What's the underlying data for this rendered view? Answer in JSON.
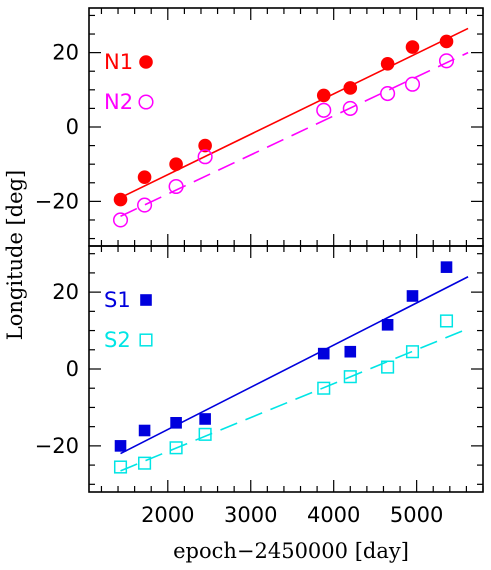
{
  "chart_data": {
    "type": "scatter",
    "xlabel": "epoch−2450000 [day]",
    "ylabel": "Longitude [deg]",
    "xlim": [
      1050,
      5800
    ],
    "x_ticks": [
      2000,
      3000,
      4000,
      5000
    ],
    "x_tick_labels": [
      "2000",
      "3000",
      "4000",
      "5000"
    ],
    "grid": false,
    "panels": [
      {
        "name": "top",
        "ylim": [
          -32,
          32
        ],
        "y_ticks": [
          -20,
          0,
          20
        ],
        "y_tick_labels": [
          "−20",
          "0",
          "20"
        ],
        "legend_placement": "top-left",
        "series": [
          {
            "name": "N1",
            "marker": "filled-circle",
            "color": "#ff0000",
            "x": [
              1430,
              1720,
              2100,
              2450,
              3880,
              4200,
              4650,
              4950,
              5360
            ],
            "y": [
              -19.5,
              -13.5,
              -10,
              -5,
              8.5,
              10.5,
              17,
              21.5,
              23
            ],
            "fit": {
              "style": "solid",
              "x": [
                1430,
                5620
              ],
              "y": [
                -19,
                26.5
              ]
            }
          },
          {
            "name": "N2",
            "marker": "open-circle",
            "color": "#ff00ff",
            "x": [
              1430,
              1720,
              2100,
              2450,
              3880,
              4200,
              4650,
              4950,
              5360
            ],
            "y": [
              -25,
              -21,
              -16,
              -8,
              4.5,
              5,
              9,
              11.5,
              17.8
            ],
            "fit": {
              "style": "dashed",
              "x": [
                1430,
                5620
              ],
              "y": [
                -24,
                20
              ]
            }
          }
        ]
      },
      {
        "name": "bottom",
        "ylim": [
          -32,
          32
        ],
        "y_ticks": [
          -20,
          0,
          20
        ],
        "y_tick_labels": [
          "−20",
          "0",
          "20"
        ],
        "legend_placement": "top-left",
        "series": [
          {
            "name": "S1",
            "marker": "filled-square",
            "color": "#0000dd",
            "x": [
              1430,
              1720,
              2100,
              2450,
              3880,
              4200,
              4650,
              4950,
              5360
            ],
            "y": [
              -20,
              -16,
              -14,
              -13,
              4,
              4.5,
              11.5,
              19,
              26.5
            ],
            "fit": {
              "style": "solid",
              "x": [
                1430,
                5620
              ],
              "y": [
                -22,
                24
              ]
            }
          },
          {
            "name": "S2",
            "marker": "open-square",
            "color": "#00e5e5",
            "x": [
              1430,
              1720,
              2100,
              2450,
              3880,
              4200,
              4650,
              4950,
              5360
            ],
            "y": [
              -25.5,
              -24.5,
              -20.5,
              -17,
              -5,
              -2,
              0.5,
              4.5,
              12.5
            ],
            "fit": {
              "style": "dashed",
              "x": [
                1430,
                5620
              ],
              "y": [
                -26.5,
                10.5
              ]
            }
          }
        ]
      }
    ]
  }
}
